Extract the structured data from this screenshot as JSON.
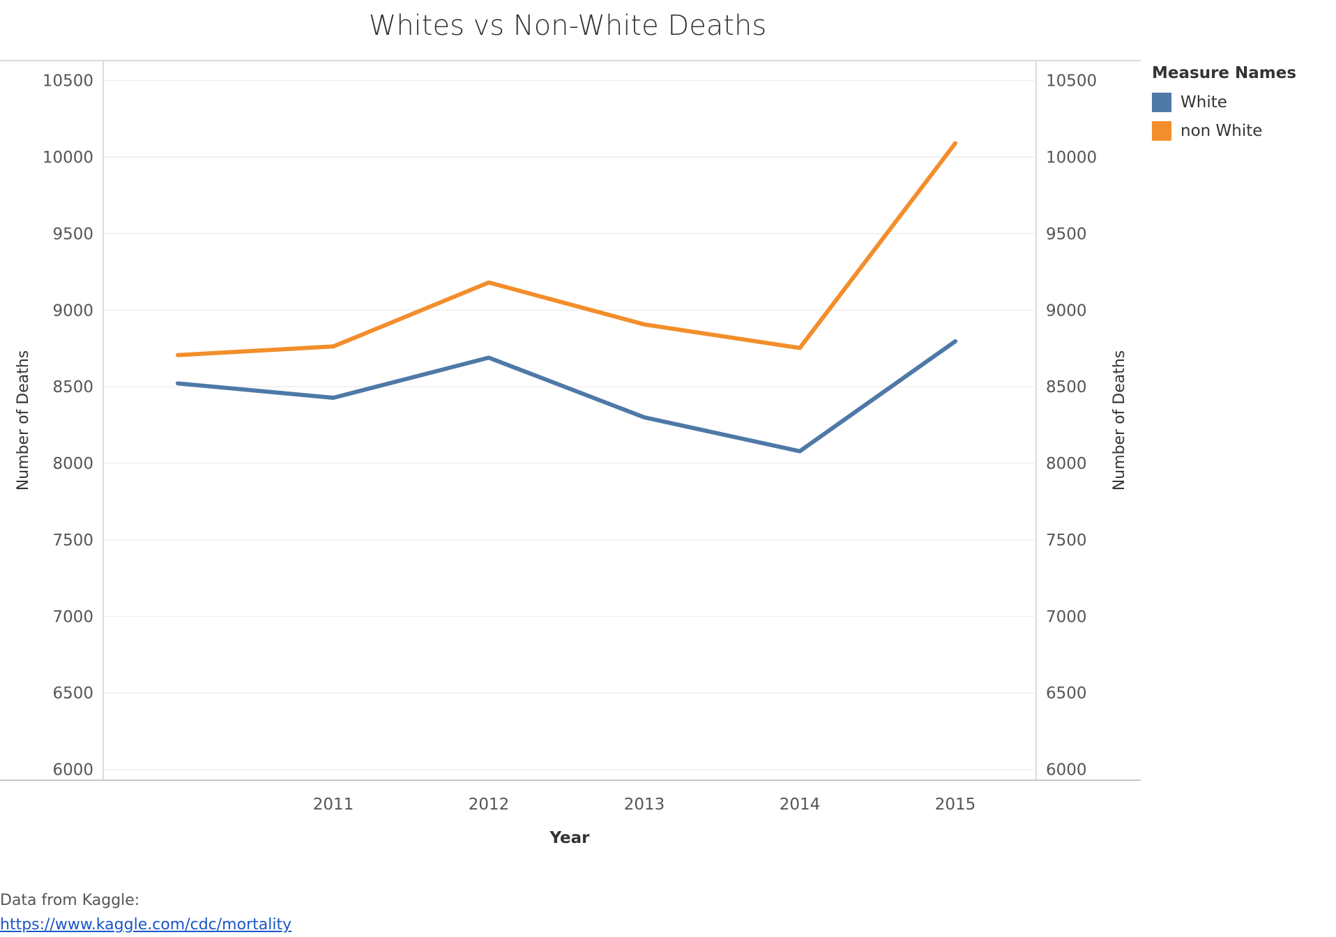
{
  "chart_data": {
    "type": "line",
    "title": "Whites vs Non-White Deaths",
    "xlabel": "Year",
    "ylabel": "Number of Deaths",
    "y2label": "Number of Deaths",
    "x": [
      2010,
      2011,
      2012,
      2013,
      2014,
      2015
    ],
    "x_tick_labels": [
      "2011",
      "2012",
      "2013",
      "2014",
      "2015"
    ],
    "x_ticks": [
      2011,
      2012,
      2013,
      2014,
      2015
    ],
    "ylim": [
      5930,
      10630
    ],
    "y_ticks": [
      6000,
      6500,
      7000,
      7500,
      8000,
      8500,
      9000,
      9500,
      10000,
      10500
    ],
    "y_tick_labels": [
      "6000",
      "6500",
      "7000",
      "7500",
      "8000",
      "8500",
      "9000",
      "9500",
      "10000",
      "10500"
    ],
    "grid": true,
    "legend_title": "Measure Names",
    "legend_position": "right",
    "series": [
      {
        "name": "White",
        "color": "#4e79a7",
        "values": [
          8522,
          8428,
          8690,
          8300,
          8079,
          8797
        ]
      },
      {
        "name": "non White",
        "color": "#f28e2b",
        "values": [
          8707,
          8763,
          9181,
          8907,
          8753,
          10090
        ]
      }
    ]
  },
  "source": {
    "label": "Data from Kaggle:",
    "link_text": "https://www.kaggle.com/cdc/mortality"
  }
}
